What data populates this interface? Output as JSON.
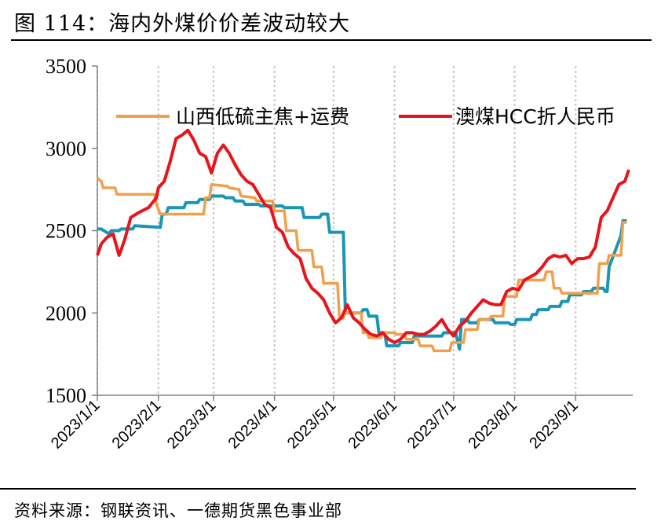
{
  "figure": {
    "title": "图 114：海内外煤价价差波动较大",
    "source": "资料来源：钢联资讯、一德期货黑色事业部"
  },
  "chart_data": {
    "type": "line",
    "xlabel": "",
    "ylabel": "",
    "ylim": [
      1500,
      3500
    ],
    "yticks": [
      1500,
      2000,
      2500,
      3000,
      3500
    ],
    "xlim": [
      "2023-01-01",
      "2023-09-30"
    ],
    "xticks": [
      "2023/1/1",
      "2023/2/1",
      "2023/3/1",
      "2023/4/1",
      "2023/5/1",
      "2023/6/1",
      "2023/7/1",
      "2023/8/1",
      "2023/9/1"
    ],
    "grid": "vertical-dashed",
    "legend": "top",
    "colors": {
      "series_0": "#F0A04B",
      "series_1": "#E8141B",
      "series_2": "#1A96B4"
    },
    "series": [
      {
        "name": "山西低硫主焦+运费",
        "x": [
          "2023-01-01",
          "2023-01-03",
          "2023-01-04",
          "2023-01-10",
          "2023-01-11",
          "2023-01-30",
          "2023-01-31",
          "2023-02-02",
          "2023-02-03",
          "2023-02-24",
          "2023-02-25",
          "2023-02-27",
          "2023-02-28",
          "2023-03-08",
          "2023-03-09",
          "2023-03-14",
          "2023-03-15",
          "2023-03-22",
          "2023-03-23",
          "2023-03-31",
          "2023-04-01",
          "2023-04-06",
          "2023-04-07",
          "2023-04-12",
          "2023-04-13",
          "2023-04-20",
          "2023-04-21",
          "2023-04-25",
          "2023-04-26",
          "2023-05-03",
          "2023-05-04",
          "2023-05-06",
          "2023-05-07",
          "2023-05-15",
          "2023-05-16",
          "2023-05-18",
          "2023-05-19",
          "2023-05-25",
          "2023-05-26",
          "2023-06-01",
          "2023-06-02",
          "2023-06-06",
          "2023-06-07",
          "2023-06-13",
          "2023-06-14",
          "2023-06-20",
          "2023-06-21",
          "2023-06-29",
          "2023-06-30",
          "2023-07-06",
          "2023-07-07",
          "2023-07-13",
          "2023-07-14",
          "2023-07-19",
          "2023-07-20",
          "2023-07-26",
          "2023-07-27",
          "2023-08-02",
          "2023-08-03",
          "2023-08-09",
          "2023-08-10",
          "2023-08-12",
          "2023-08-13",
          "2023-08-16",
          "2023-08-17",
          "2023-08-20",
          "2023-08-21",
          "2023-08-24",
          "2023-08-25",
          "2023-09-03",
          "2023-09-04",
          "2023-09-12",
          "2023-09-13",
          "2023-09-17",
          "2023-09-18",
          "2023-09-24",
          "2023-09-25",
          "2023-09-27"
        ],
        "values": [
          2820,
          2800,
          2760,
          2760,
          2720,
          2720,
          2660,
          2600,
          2600,
          2600,
          2700,
          2700,
          2780,
          2770,
          2760,
          2750,
          2710,
          2700,
          2680,
          2680,
          2620,
          2620,
          2500,
          2500,
          2380,
          2380,
          2280,
          2280,
          2180,
          2180,
          1970,
          1970,
          2000,
          2000,
          1880,
          1880,
          1850,
          1850,
          1880,
          1880,
          1870,
          1870,
          1840,
          1840,
          1800,
          1800,
          1770,
          1770,
          1820,
          1820,
          1900,
          1900,
          1960,
          1960,
          1980,
          1980,
          2100,
          2100,
          2200,
          2200,
          2200,
          2200,
          2200,
          2200,
          2250,
          2250,
          2150,
          2150,
          2120,
          2120,
          2120,
          2120,
          2300,
          2300,
          2350,
          2350,
          2550,
          2550
        ]
      },
      {
        "name": "澳煤HCC折人民币",
        "x": [
          "2023-01-01",
          "2023-01-03",
          "2023-01-06",
          "2023-01-09",
          "2023-01-12",
          "2023-01-13",
          "2023-01-15",
          "2023-01-18",
          "2023-01-22",
          "2023-01-27",
          "2023-01-31",
          "2023-02-01",
          "2023-02-04",
          "2023-02-07",
          "2023-02-10",
          "2023-02-13",
          "2023-02-16",
          "2023-02-19",
          "2023-02-22",
          "2023-02-25",
          "2023-02-28",
          "2023-03-03",
          "2023-03-06",
          "2023-03-09",
          "2023-03-12",
          "2023-03-15",
          "2023-03-18",
          "2023-03-21",
          "2023-03-24",
          "2023-03-27",
          "2023-03-30",
          "2023-04-02",
          "2023-04-05",
          "2023-04-08",
          "2023-04-11",
          "2023-04-14",
          "2023-04-17",
          "2023-04-20",
          "2023-04-23",
          "2023-04-26",
          "2023-04-29",
          "2023-05-02",
          "2023-05-05",
          "2023-05-08",
          "2023-05-11",
          "2023-05-14",
          "2023-05-17",
          "2023-05-20",
          "2023-05-23",
          "2023-05-26",
          "2023-05-29",
          "2023-06-01",
          "2023-06-04",
          "2023-06-07",
          "2023-06-10",
          "2023-06-13",
          "2023-06-16",
          "2023-06-19",
          "2023-06-22",
          "2023-06-25",
          "2023-06-28",
          "2023-07-01",
          "2023-07-04",
          "2023-07-07",
          "2023-07-10",
          "2023-07-13",
          "2023-07-16",
          "2023-07-19",
          "2023-07-22",
          "2023-07-25",
          "2023-07-28",
          "2023-07-31",
          "2023-08-03",
          "2023-08-06",
          "2023-08-09",
          "2023-08-12",
          "2023-08-15",
          "2023-08-18",
          "2023-08-21",
          "2023-08-24",
          "2023-08-27",
          "2023-08-30",
          "2023-09-02",
          "2023-09-05",
          "2023-09-08",
          "2023-09-11",
          "2023-09-14",
          "2023-09-17",
          "2023-09-20",
          "2023-09-23",
          "2023-09-26",
          "2023-09-28"
        ],
        "values": [
          2350,
          2420,
          2460,
          2480,
          2350,
          2380,
          2450,
          2580,
          2610,
          2640,
          2700,
          2760,
          2800,
          2920,
          3060,
          3080,
          3110,
          3050,
          2970,
          2950,
          2850,
          2970,
          3020,
          2970,
          2900,
          2840,
          2800,
          2780,
          2720,
          2660,
          2640,
          2520,
          2490,
          2400,
          2360,
          2330,
          2210,
          2150,
          2120,
          2080,
          2000,
          1940,
          1970,
          2050,
          1970,
          1940,
          1900,
          1870,
          1860,
          1880,
          1840,
          1820,
          1840,
          1880,
          1880,
          1870,
          1870,
          1890,
          1920,
          1960,
          1900,
          1860,
          1920,
          1950,
          2000,
          2040,
          2080,
          2060,
          2050,
          2050,
          2130,
          2150,
          2140,
          2200,
          2220,
          2240,
          2280,
          2330,
          2350,
          2340,
          2350,
          2300,
          2330,
          2330,
          2340,
          2400,
          2580,
          2620,
          2700,
          2780,
          2800,
          2870
        ]
      },
      {
        "name": "",
        "x": [
          "2023-01-01",
          "2023-01-03",
          "2023-01-07",
          "2023-01-08",
          "2023-01-12",
          "2023-01-13",
          "2023-01-19",
          "2023-01-20",
          "2023-02-02",
          "2023-02-03",
          "2023-02-05",
          "2023-02-06",
          "2023-02-14",
          "2023-02-15",
          "2023-02-21",
          "2023-02-22",
          "2023-02-27",
          "2023-02-28",
          "2023-03-06",
          "2023-03-07",
          "2023-03-11",
          "2023-03-12",
          "2023-03-16",
          "2023-03-17",
          "2023-03-24",
          "2023-03-25",
          "2023-04-05",
          "2023-04-06",
          "2023-04-15",
          "2023-04-16",
          "2023-04-24",
          "2023-04-25",
          "2023-04-28",
          "2023-04-29",
          "2023-05-06",
          "2023-05-07",
          "2023-05-15",
          "2023-05-16",
          "2023-05-18",
          "2023-05-19",
          "2023-05-23",
          "2023-05-24",
          "2023-05-27",
          "2023-05-28",
          "2023-06-03",
          "2023-06-04",
          "2023-06-10",
          "2023-06-11",
          "2023-06-17",
          "2023-06-18",
          "2023-06-25",
          "2023-06-26",
          "2023-07-02",
          "2023-07-04",
          "2023-07-05",
          "2023-07-08",
          "2023-07-09",
          "2023-07-13",
          "2023-07-14",
          "2023-07-21",
          "2023-07-22",
          "2023-07-29",
          "2023-07-30",
          "2023-08-01",
          "2023-08-02",
          "2023-08-09",
          "2023-08-10",
          "2023-08-12",
          "2023-08-13",
          "2023-08-18",
          "2023-08-19",
          "2023-08-24",
          "2023-08-25",
          "2023-08-28",
          "2023-08-29",
          "2023-09-04",
          "2023-09-05",
          "2023-09-09",
          "2023-09-10",
          "2023-09-15",
          "2023-09-16",
          "2023-09-17",
          "2023-09-18",
          "2023-09-24",
          "2023-09-25",
          "2023-09-27"
        ],
        "values": [
          2510,
          2510,
          2480,
          2500,
          2500,
          2510,
          2510,
          2530,
          2520,
          2600,
          2600,
          2640,
          2640,
          2670,
          2670,
          2690,
          2690,
          2710,
          2710,
          2700,
          2700,
          2680,
          2680,
          2660,
          2660,
          2650,
          2650,
          2640,
          2640,
          2580,
          2580,
          2600,
          2600,
          2490,
          2490,
          2000,
          2000,
          2020,
          2020,
          1980,
          1980,
          1880,
          1880,
          1800,
          1800,
          1820,
          1820,
          1860,
          1860,
          1860,
          1860,
          1880,
          1880,
          1780,
          1960,
          1960,
          1940,
          1940,
          1960,
          1960,
          1940,
          1940,
          1930,
          1930,
          1960,
          1960,
          1990,
          1990,
          2020,
          2020,
          2040,
          2040,
          2070,
          2070,
          2110,
          2110,
          2130,
          2130,
          2150,
          2150,
          2130,
          2130,
          2280,
          2470,
          2560,
          2560
        ]
      }
    ]
  }
}
